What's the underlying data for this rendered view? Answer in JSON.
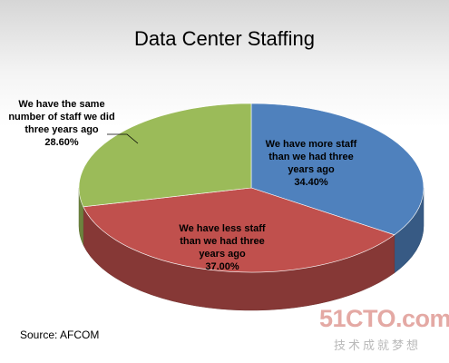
{
  "chart_data": {
    "type": "pie3d",
    "title": "Data Center Staffing",
    "categories": [
      "We have more staff than we had three years ago",
      "We have less staff than we had three years ago",
      "We have the same number of staff we did three years ago"
    ],
    "values": [
      34.4,
      37.0,
      28.6
    ],
    "value_labels": [
      "34.40%",
      "37.00%",
      "28.60%"
    ],
    "colors": [
      "#4f81bd",
      "#c0504d",
      "#9bbb59"
    ],
    "source": "Source: AFCOM"
  },
  "watermark": {
    "site": "51CTO.com",
    "slogan": "技术成就梦想"
  }
}
